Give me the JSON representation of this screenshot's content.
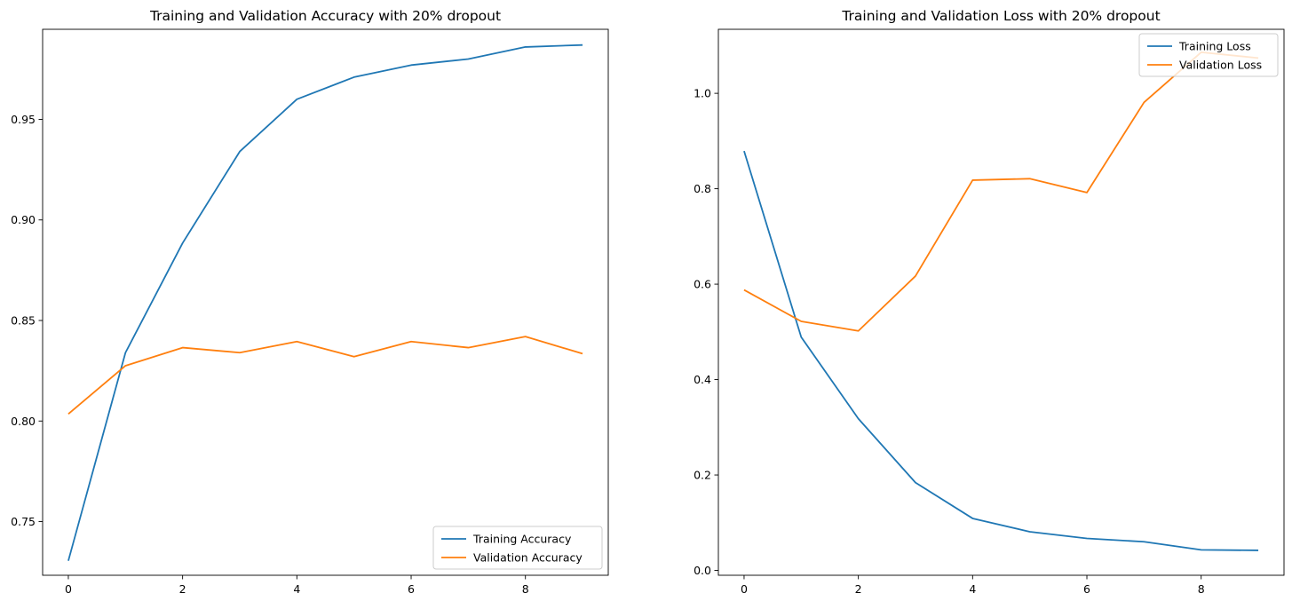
{
  "chart_data": [
    {
      "type": "line",
      "title": "Training and Validation Accuracy with 20% dropout",
      "xlabel": "",
      "ylabel": "",
      "x": [
        0,
        1,
        2,
        3,
        4,
        5,
        6,
        7,
        8,
        9
      ],
      "xlim": [
        -0.45,
        9.45
      ],
      "ylim": [
        0.7233,
        0.9948
      ],
      "xticks": [
        0,
        2,
        4,
        6,
        8
      ],
      "yticks": [
        0.75,
        0.8,
        0.85,
        0.9,
        0.95
      ],
      "ytick_labels": [
        "0.75",
        "0.80",
        "0.85",
        "0.90",
        "0.95"
      ],
      "grid": false,
      "legend_position": "lower-right",
      "series": [
        {
          "name": "Training Accuracy",
          "color": "#1f77b4",
          "values": [
            0.7305,
            0.834,
            0.8885,
            0.934,
            0.96,
            0.971,
            0.977,
            0.98,
            0.986,
            0.987
          ]
        },
        {
          "name": "Validation Accuracy",
          "color": "#ff7f0e",
          "values": [
            0.8035,
            0.8275,
            0.8365,
            0.834,
            0.8395,
            0.832,
            0.8395,
            0.8365,
            0.842,
            0.8335
          ]
        }
      ]
    },
    {
      "type": "line",
      "title": "Training and Validation Loss with 20% dropout",
      "xlabel": "",
      "ylabel": "",
      "x": [
        0,
        1,
        2,
        3,
        4,
        5,
        6,
        7,
        8,
        9
      ],
      "xlim": [
        -0.45,
        9.45
      ],
      "ylim": [
        -0.0102,
        1.1342
      ],
      "xticks": [
        0,
        2,
        4,
        6,
        8
      ],
      "yticks": [
        0.0,
        0.2,
        0.4,
        0.6,
        0.8,
        1.0
      ],
      "ytick_labels": [
        "0.0",
        "0.2",
        "0.4",
        "0.6",
        "0.8",
        "1.0"
      ],
      "grid": false,
      "legend_position": "upper-right",
      "series": [
        {
          "name": "Training Loss",
          "color": "#1f77b4",
          "values": [
            0.879,
            0.489,
            0.318,
            0.184,
            0.109,
            0.081,
            0.067,
            0.06,
            0.043,
            0.042
          ]
        },
        {
          "name": "Validation Loss",
          "color": "#ff7f0e",
          "values": [
            0.588,
            0.522,
            0.502,
            0.617,
            0.818,
            0.821,
            0.792,
            0.981,
            1.086,
            1.074
          ]
        }
      ]
    }
  ]
}
